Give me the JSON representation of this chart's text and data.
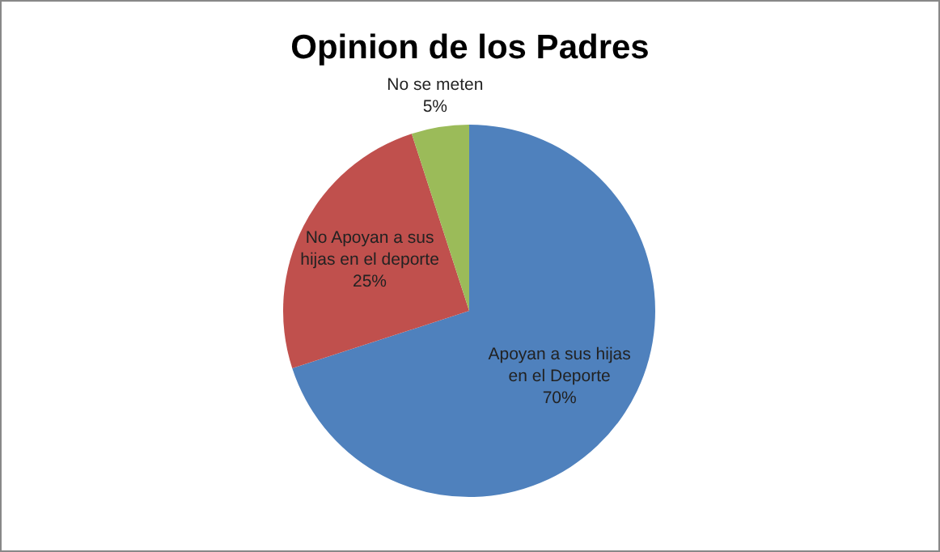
{
  "chart_data": {
    "type": "pie",
    "title": "Opinion de los Padres",
    "categories": [
      "Apoyan a sus hijas en el Deporte",
      "No Apoyan a sus hijas en el deporte",
      "No se meten"
    ],
    "values": [
      70,
      25,
      5
    ],
    "colors": [
      "#4f81bd",
      "#c0504d",
      "#9bbb59"
    ],
    "value_labels": [
      "70%",
      "25%",
      "5%"
    ],
    "legend": false
  }
}
